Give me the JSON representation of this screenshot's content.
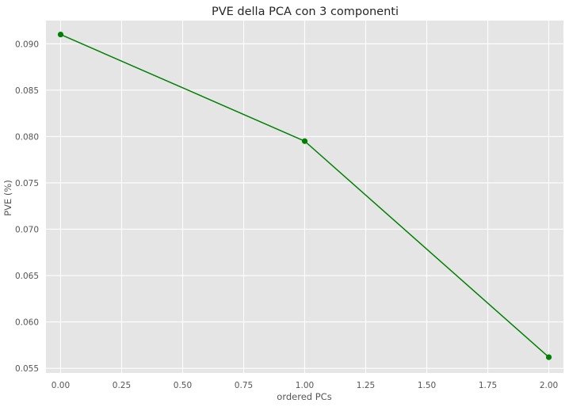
{
  "chart_data": {
    "type": "line",
    "title": "PVE della PCA con 3 componenti",
    "xlabel": "ordered PCs",
    "ylabel": "PVE (%)",
    "xlim": [
      -0.06,
      2.06
    ],
    "ylim": [
      0.0545,
      0.0925
    ],
    "x_ticks": [
      0.0,
      0.25,
      0.5,
      0.75,
      1.0,
      1.25,
      1.5,
      1.75,
      2.0
    ],
    "x_tick_labels": [
      "0.00",
      "0.25",
      "0.50",
      "0.75",
      "1.00",
      "1.25",
      "1.50",
      "1.75",
      "2.00"
    ],
    "y_ticks": [
      0.055,
      0.06,
      0.065,
      0.07,
      0.075,
      0.08,
      0.085,
      0.09
    ],
    "y_tick_labels": [
      "0.055",
      "0.060",
      "0.065",
      "0.070",
      "0.075",
      "0.080",
      "0.085",
      "0.090"
    ],
    "grid": true,
    "style": {
      "background": "#e5e5e5",
      "grid_color": "#ffffff",
      "line_color": "#008000"
    },
    "series": [
      {
        "x": [
          0,
          1,
          2
        ],
        "y": [
          0.091,
          0.0795,
          0.0562
        ]
      }
    ]
  }
}
